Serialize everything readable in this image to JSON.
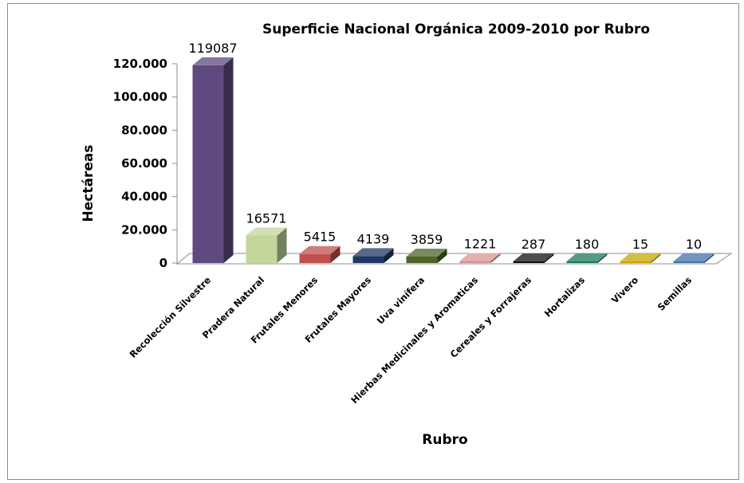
{
  "chart_data": {
    "type": "bar",
    "title": "Superficie Nacional Orgánica 2009-2010 por Rubro",
    "xlabel": "Rubro",
    "ylabel": "Hectáreas",
    "ylim": [
      0,
      120000
    ],
    "yticks": [
      "0",
      "20.000",
      "40.000",
      "60.000",
      "80.000",
      "100.000",
      "120.000"
    ],
    "categories": [
      "Recolección Silvestre",
      "Pradera Natural",
      "Frutales Menores",
      "Frutales Mayores",
      "Uva vinífera",
      "Hierbas Medicinales y Aromaticas",
      "Cereales y Forrajeras",
      "Hortalizas",
      "Vivero",
      "Semillas"
    ],
    "values": [
      119087,
      16571,
      5415,
      4139,
      3859,
      1221,
      287,
      180,
      15,
      10
    ],
    "data_labels": [
      "119087",
      "16571",
      "5415",
      "4139",
      "3859",
      "1221",
      "287",
      "180",
      "15",
      "10"
    ],
    "colors": [
      "#5e4a7e",
      "#c3d69b",
      "#c0504d",
      "#1f3864",
      "#4f6228",
      "#d99694",
      "#111111",
      "#1d7a57",
      "#c9a500",
      "#4372a8"
    ],
    "grid": false,
    "legend": "none"
  }
}
